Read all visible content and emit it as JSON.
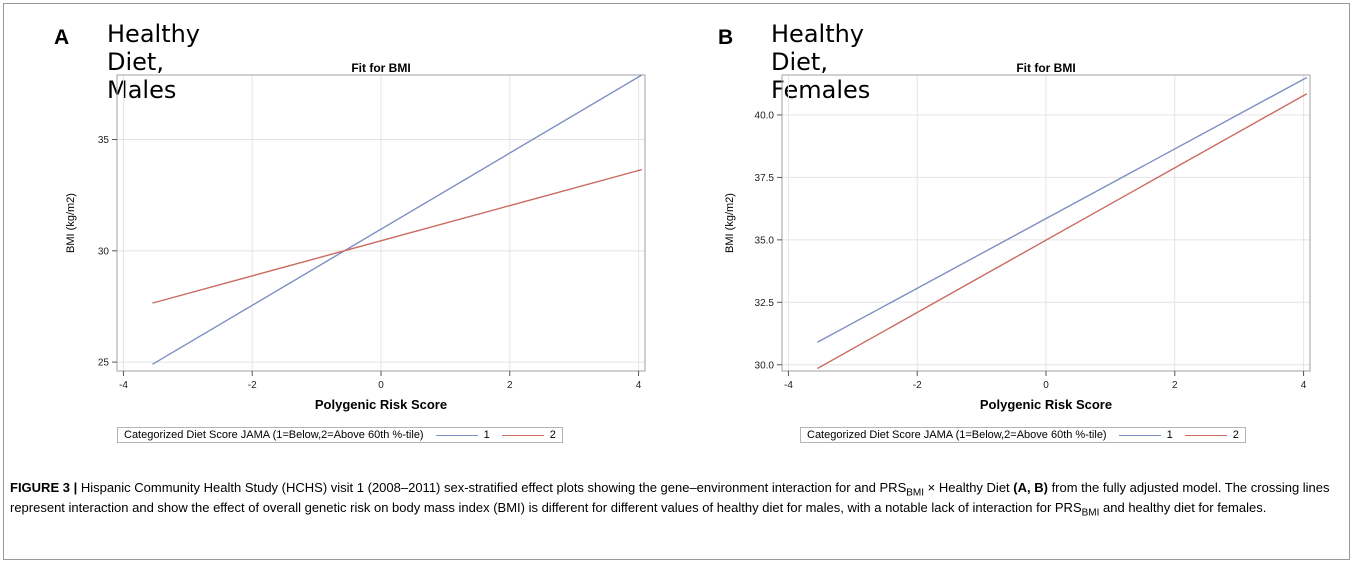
{
  "figure": {
    "caption": {
      "label": "FIGURE 3 |",
      "text1": " Hispanic Community Health Study (HCHS) visit 1 (2008–2011) sex-stratified effect plots showing the gene–environment interaction for and PRS",
      "sub1": "BMI",
      "text2": " × Healthy Diet ",
      "bold2": "(A, B)",
      "text3": " from the fully adjusted model. The crossing lines represent interaction and show the effect of overall genetic risk on body mass index (BMI) is different for different values of healthy diet for males, with a notable lack of interaction for PRS",
      "sub2": "BMI",
      "text4": " and healthy diet for females."
    }
  },
  "colors": {
    "series1": "#7f8fc4",
    "series2": "#cc6b60",
    "grid": "#e4e4e4",
    "frame": "#a0a0a0"
  },
  "panels": [
    {
      "letter": "A",
      "title": "Healthy Diet, Males",
      "legend_label": "Categorized Diet Score JAMA (1=Below,2=Above 60th %-tile)"
    },
    {
      "letter": "B",
      "title": "Healthy Diet, Females",
      "legend_label": "Categorized Diet Score JAMA (1=Below,2=Above 60th %-tile)"
    }
  ],
  "chart_data": [
    {
      "type": "line",
      "title": "Fit for BMI",
      "xlabel": "Polygenic Risk Score",
      "ylabel": "BMI (kg/m2)",
      "xlim": [
        -4.1,
        4.1
      ],
      "ylim": [
        24.6,
        37.9
      ],
      "xticks": [
        -4,
        -2,
        0,
        2,
        4
      ],
      "xtick_labels": [
        "-4",
        "-2",
        "0",
        "2",
        "4"
      ],
      "yticks": [
        25,
        30,
        35
      ],
      "ytick_labels": [
        "25",
        "30",
        "35"
      ],
      "grid": true,
      "legend": "bottom",
      "series": [
        {
          "name": "1",
          "x": [
            -3.55,
            4.05
          ],
          "y": [
            24.9,
            37.9
          ]
        },
        {
          "name": "2",
          "x": [
            -3.55,
            4.05
          ],
          "y": [
            27.65,
            33.65
          ]
        }
      ]
    },
    {
      "type": "line",
      "title": "Fit for BMI",
      "xlabel": "Polygenic Risk Score",
      "ylabel": "BMI (kg/m2)",
      "xlim": [
        -4.1,
        4.1
      ],
      "ylim": [
        29.75,
        41.6
      ],
      "xticks": [
        -4,
        -2,
        0,
        2,
        4
      ],
      "xtick_labels": [
        "-4",
        "-2",
        "0",
        "2",
        "4"
      ],
      "yticks": [
        30.0,
        32.5,
        35.0,
        37.5,
        40.0
      ],
      "ytick_labels": [
        "30.0",
        "32.5",
        "35.0",
        "37.5",
        "40.0"
      ],
      "grid": true,
      "legend": "bottom",
      "series": [
        {
          "name": "1",
          "x": [
            -3.55,
            4.05
          ],
          "y": [
            30.9,
            41.5
          ]
        },
        {
          "name": "2",
          "x": [
            -3.55,
            4.05
          ],
          "y": [
            29.85,
            40.85
          ]
        }
      ]
    }
  ]
}
